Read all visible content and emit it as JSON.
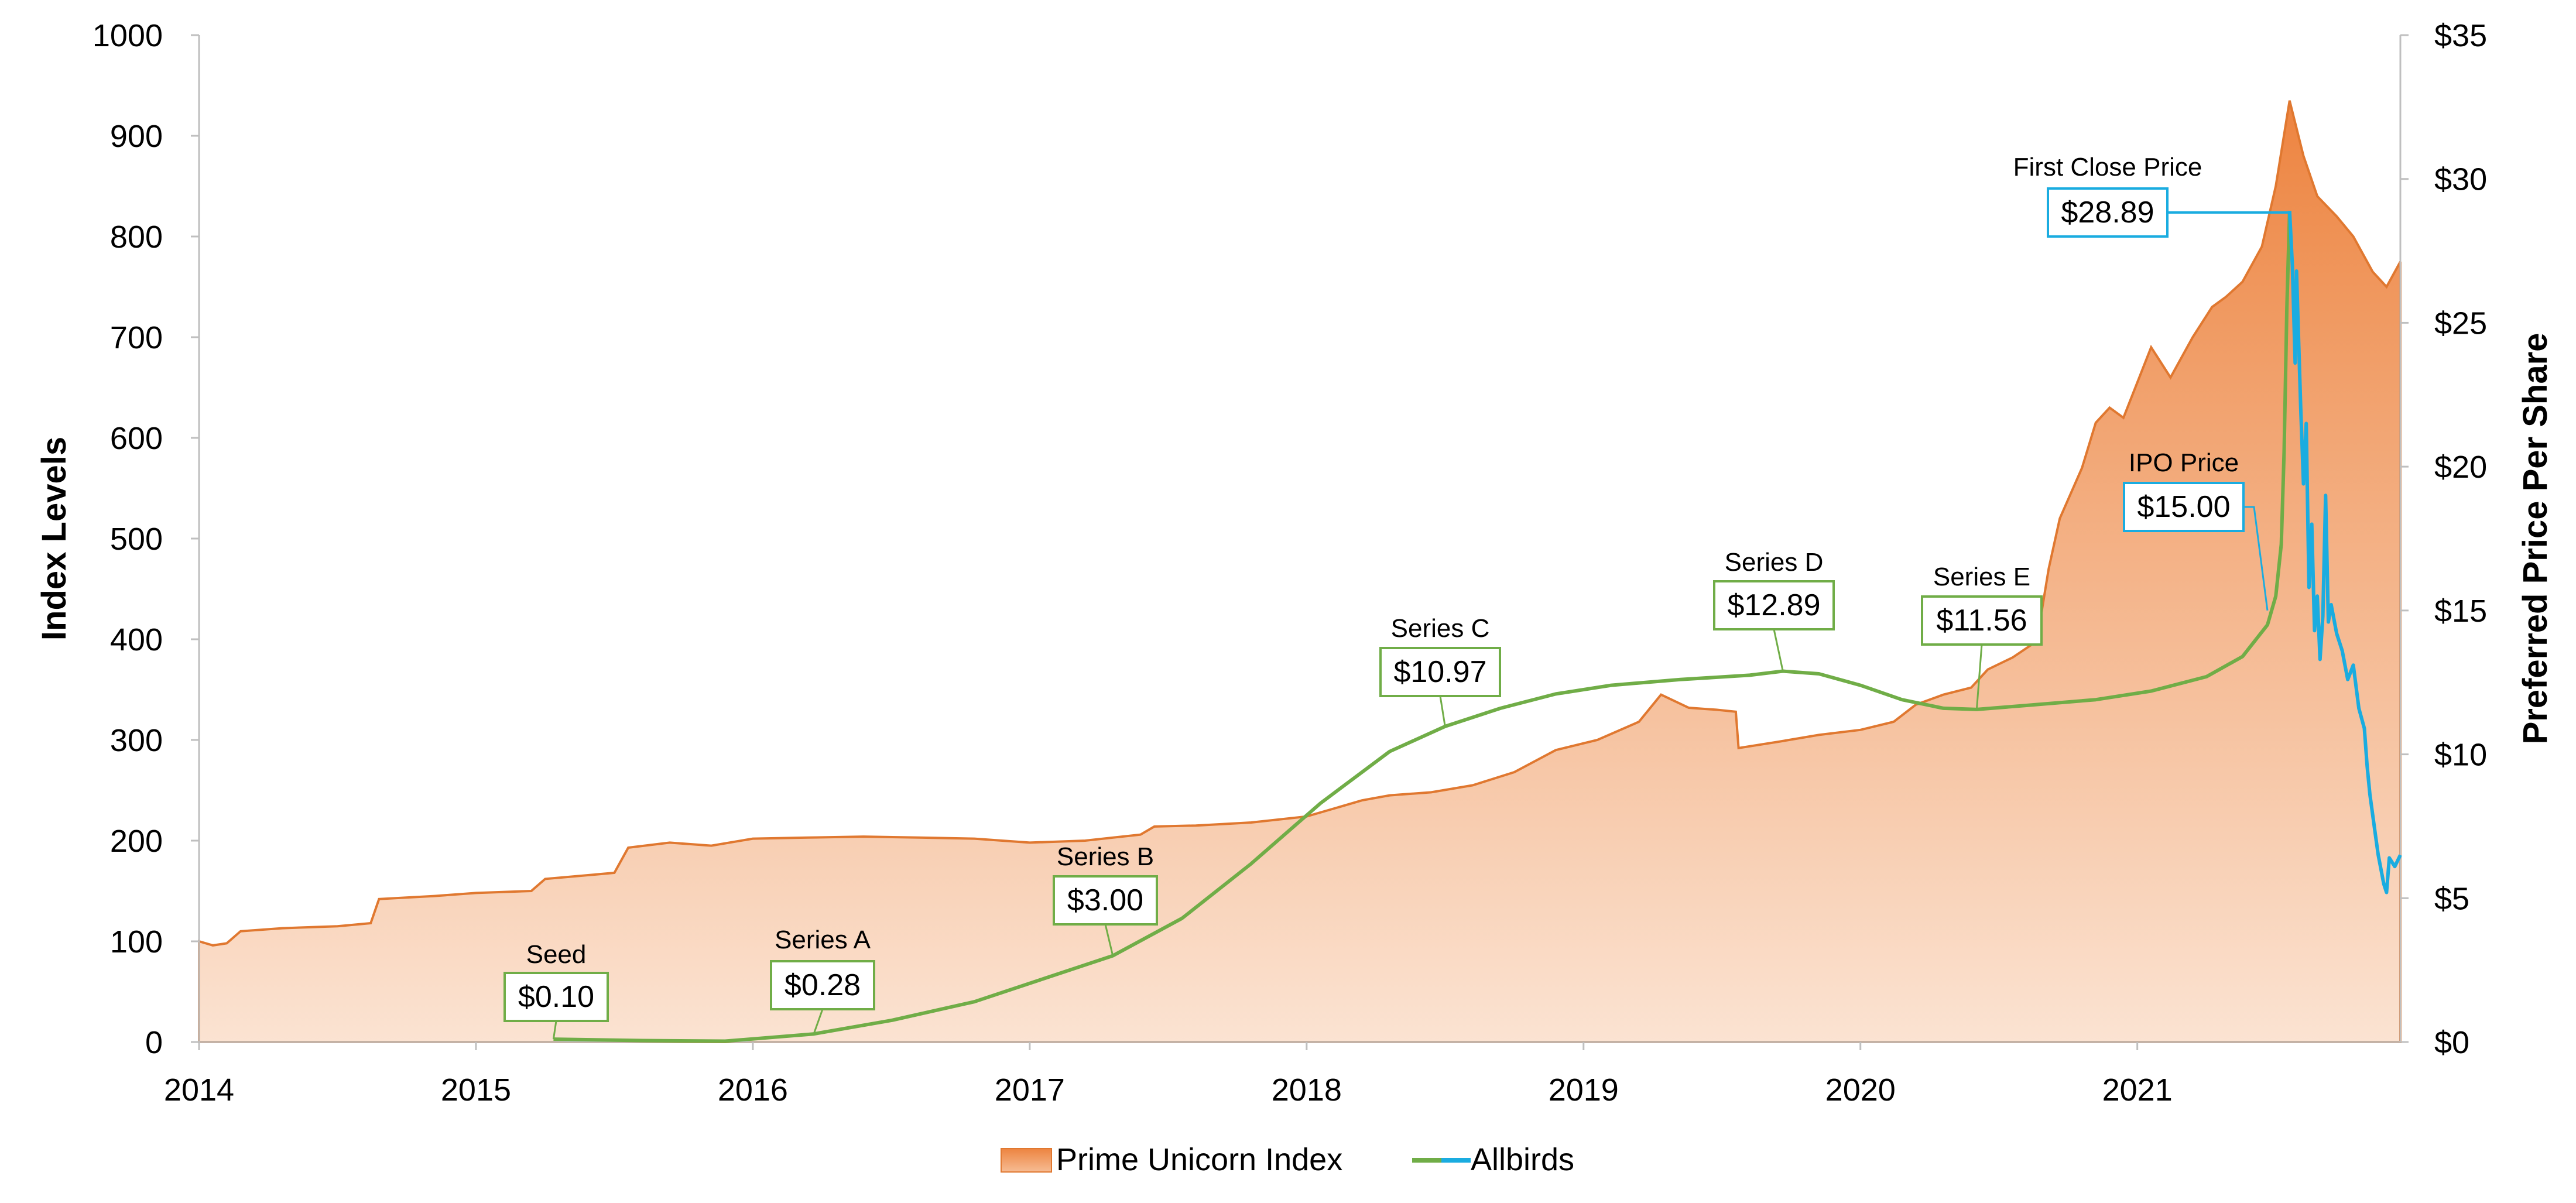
{
  "chart_data": {
    "type": "area",
    "title": "",
    "xlabel": "",
    "ylabel": "Index Levels",
    "y2label": "Preferred Price Per Share",
    "xlim": [
      2014.0,
      2021.95
    ],
    "ylim": [
      0,
      1000
    ],
    "y2lim": [
      0,
      35
    ],
    "x_ticks": [
      "2014",
      "2015",
      "2016",
      "2017",
      "2018",
      "2019",
      "2020",
      "2021"
    ],
    "y_ticks": [
      "0",
      "100",
      "200",
      "300",
      "400",
      "500",
      "600",
      "700",
      "800",
      "900",
      "1000"
    ],
    "y2_ticks": [
      "$0",
      "$5",
      "$10",
      "$15",
      "$20",
      "$25",
      "$30",
      "$35"
    ],
    "grid": false,
    "legend_position": "bottom",
    "colors": {
      "index_fill_top": "#ED8440",
      "index_fill_bottom": "#FBE3D2",
      "index_line": "#E07830",
      "private_line": "#70AD47",
      "public_line": "#1AACE0",
      "axis": "#bfbfbf"
    },
    "series": [
      {
        "name": "Prime Unicorn Index",
        "kind": "area",
        "axis": "left",
        "points": [
          [
            2014.0,
            100
          ],
          [
            2014.05,
            96
          ],
          [
            2014.1,
            98
          ],
          [
            2014.15,
            110
          ],
          [
            2014.3,
            113
          ],
          [
            2014.5,
            115
          ],
          [
            2014.62,
            118
          ],
          [
            2014.65,
            142
          ],
          [
            2014.85,
            145
          ],
          [
            2015.0,
            148
          ],
          [
            2015.2,
            150
          ],
          [
            2015.25,
            162
          ],
          [
            2015.5,
            168
          ],
          [
            2015.55,
            193
          ],
          [
            2015.7,
            198
          ],
          [
            2015.85,
            195
          ],
          [
            2016.0,
            202
          ],
          [
            2016.2,
            203
          ],
          [
            2016.4,
            204
          ],
          [
            2016.6,
            203
          ],
          [
            2016.8,
            202
          ],
          [
            2017.0,
            198
          ],
          [
            2017.2,
            200
          ],
          [
            2017.4,
            206
          ],
          [
            2017.45,
            214
          ],
          [
            2017.6,
            215
          ],
          [
            2017.8,
            218
          ],
          [
            2018.0,
            224
          ],
          [
            2018.1,
            232
          ],
          [
            2018.2,
            240
          ],
          [
            2018.3,
            245
          ],
          [
            2018.45,
            248
          ],
          [
            2018.6,
            255
          ],
          [
            2018.75,
            268
          ],
          [
            2018.9,
            290
          ],
          [
            2019.05,
            300
          ],
          [
            2019.2,
            318
          ],
          [
            2019.28,
            345
          ],
          [
            2019.38,
            332
          ],
          [
            2019.48,
            330
          ],
          [
            2019.55,
            328
          ],
          [
            2019.56,
            292
          ],
          [
            2019.7,
            298
          ],
          [
            2019.85,
            305
          ],
          [
            2020.0,
            310
          ],
          [
            2020.12,
            318
          ],
          [
            2020.2,
            335
          ],
          [
            2020.3,
            345
          ],
          [
            2020.4,
            352
          ],
          [
            2020.46,
            370
          ],
          [
            2020.55,
            382
          ],
          [
            2020.62,
            395
          ],
          [
            2020.65,
            420
          ],
          [
            2020.68,
            470
          ],
          [
            2020.72,
            520
          ],
          [
            2020.8,
            570
          ],
          [
            2020.85,
            615
          ],
          [
            2020.9,
            630
          ],
          [
            2020.95,
            620
          ],
          [
            2021.0,
            655
          ],
          [
            2021.05,
            690
          ],
          [
            2021.12,
            660
          ],
          [
            2021.2,
            700
          ],
          [
            2021.27,
            730
          ],
          [
            2021.32,
            740
          ],
          [
            2021.38,
            755
          ],
          [
            2021.45,
            790
          ],
          [
            2021.5,
            850
          ],
          [
            2021.55,
            935
          ],
          [
            2021.6,
            880
          ],
          [
            2021.65,
            840
          ],
          [
            2021.72,
            820
          ],
          [
            2021.78,
            800
          ],
          [
            2021.85,
            765
          ],
          [
            2021.9,
            750
          ],
          [
            2021.95,
            775
          ]
        ]
      },
      {
        "name": "Allbirds",
        "kind": "line",
        "axis": "right",
        "private_points": [
          [
            2015.28,
            0.1
          ],
          [
            2015.6,
            0.05
          ],
          [
            2015.9,
            0.03
          ],
          [
            2016.22,
            0.28
          ],
          [
            2016.5,
            0.75
          ],
          [
            2016.8,
            1.4
          ],
          [
            2017.05,
            2.2
          ],
          [
            2017.3,
            3.0
          ],
          [
            2017.55,
            4.3
          ],
          [
            2017.8,
            6.2
          ],
          [
            2018.05,
            8.3
          ],
          [
            2018.3,
            10.1
          ],
          [
            2018.5,
            10.97
          ],
          [
            2018.7,
            11.6
          ],
          [
            2018.9,
            12.1
          ],
          [
            2019.1,
            12.4
          ],
          [
            2019.35,
            12.6
          ],
          [
            2019.6,
            12.75
          ],
          [
            2019.72,
            12.89
          ],
          [
            2019.85,
            12.8
          ],
          [
            2020.0,
            12.4
          ],
          [
            2020.15,
            11.9
          ],
          [
            2020.3,
            11.6
          ],
          [
            2020.42,
            11.56
          ],
          [
            2020.6,
            11.7
          ],
          [
            2020.85,
            11.9
          ],
          [
            2021.05,
            12.2
          ],
          [
            2021.25,
            12.7
          ],
          [
            2021.38,
            13.4
          ],
          [
            2021.47,
            14.5
          ],
          [
            2021.5,
            15.5
          ],
          [
            2021.52,
            17.3
          ],
          [
            2021.53,
            20.5
          ],
          [
            2021.54,
            25.5
          ],
          [
            2021.55,
            28.89
          ]
        ],
        "public_points": [
          [
            2021.55,
            28.89
          ],
          [
            2021.56,
            27.0
          ],
          [
            2021.57,
            23.6
          ],
          [
            2021.575,
            26.8
          ],
          [
            2021.58,
            25.2
          ],
          [
            2021.59,
            22.1
          ],
          [
            2021.6,
            19.4
          ],
          [
            2021.61,
            21.5
          ],
          [
            2021.62,
            15.8
          ],
          [
            2021.63,
            18.0
          ],
          [
            2021.64,
            14.3
          ],
          [
            2021.65,
            15.5
          ],
          [
            2021.66,
            13.3
          ],
          [
            2021.67,
            14.8
          ],
          [
            2021.68,
            19.0
          ],
          [
            2021.69,
            14.6
          ],
          [
            2021.7,
            15.2
          ],
          [
            2021.72,
            14.2
          ],
          [
            2021.74,
            13.6
          ],
          [
            2021.76,
            12.6
          ],
          [
            2021.78,
            13.1
          ],
          [
            2021.8,
            11.6
          ],
          [
            2021.82,
            10.9
          ],
          [
            2021.83,
            9.6
          ],
          [
            2021.84,
            8.6
          ],
          [
            2021.85,
            7.9
          ],
          [
            2021.86,
            7.2
          ],
          [
            2021.87,
            6.5
          ],
          [
            2021.88,
            6.0
          ],
          [
            2021.89,
            5.5
          ],
          [
            2021.9,
            5.2
          ],
          [
            2021.91,
            6.4
          ],
          [
            2021.93,
            6.1
          ],
          [
            2021.95,
            6.5
          ]
        ]
      }
    ],
    "annotations": [
      {
        "label": "Seed",
        "value": "$0.10",
        "x": 2015.28,
        "price": 0.1,
        "color": "#70AD47"
      },
      {
        "label": "Series A",
        "value": "$0.28",
        "x": 2016.22,
        "price": 0.28,
        "color": "#70AD47"
      },
      {
        "label": "Series B",
        "value": "$3.00",
        "x": 2017.3,
        "price": 3.0,
        "color": "#70AD47"
      },
      {
        "label": "Series C",
        "value": "$10.97",
        "x": 2018.5,
        "price": 10.97,
        "color": "#70AD47"
      },
      {
        "label": "Series D",
        "value": "$12.89",
        "x": 2019.72,
        "price": 12.89,
        "color": "#70AD47"
      },
      {
        "label": "Series E",
        "value": "$11.56",
        "x": 2020.42,
        "price": 11.56,
        "color": "#70AD47"
      },
      {
        "label": "IPO Price",
        "value": "$15.00",
        "x": 2021.47,
        "price": 15.0,
        "color": "#1AACE0"
      },
      {
        "label": "First Close Price",
        "value": "$28.89",
        "x": 2021.55,
        "price": 28.89,
        "color": "#1AACE0"
      }
    ],
    "legend": [
      {
        "name": "Prime Unicorn Index",
        "swatch": "area"
      },
      {
        "name": "Allbirds",
        "swatch": "line"
      }
    ]
  }
}
